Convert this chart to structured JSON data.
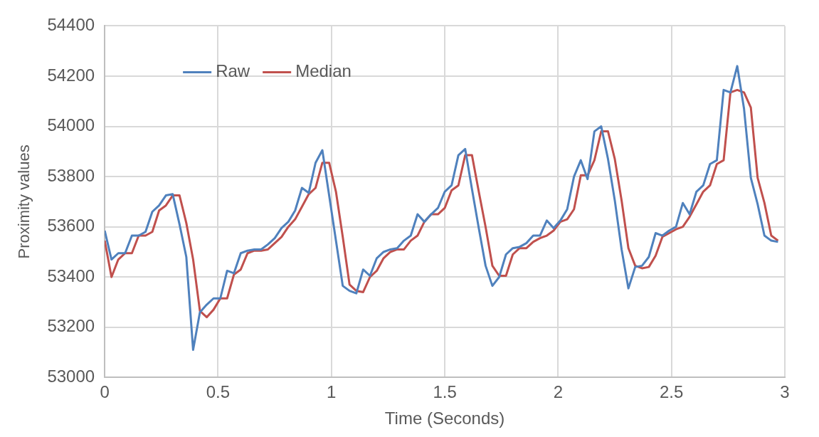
{
  "chart_data": {
    "type": "line",
    "xlabel": "Time (Seconds)",
    "ylabel": "Proximity values",
    "x": [
      0,
      0.03,
      0.06,
      0.09,
      0.12,
      0.15,
      0.18,
      0.21,
      0.24,
      0.27,
      0.3,
      0.33,
      0.36,
      0.39,
      0.42,
      0.45,
      0.48,
      0.51,
      0.54,
      0.57,
      0.6,
      0.63,
      0.66,
      0.69,
      0.72,
      0.75,
      0.78,
      0.81,
      0.84,
      0.87,
      0.9,
      0.93,
      0.96,
      0.99,
      1.02,
      1.05,
      1.08,
      1.11,
      1.14,
      1.17,
      1.2,
      1.23,
      1.26,
      1.29,
      1.32,
      1.35,
      1.38,
      1.41,
      1.44,
      1.47,
      1.5,
      1.53,
      1.56,
      1.59,
      1.62,
      1.65,
      1.68,
      1.71,
      1.74,
      1.77,
      1.8,
      1.83,
      1.86,
      1.89,
      1.92,
      1.95,
      1.98,
      2.01,
      2.04,
      2.07,
      2.1,
      2.13,
      2.16,
      2.19,
      2.22,
      2.25,
      2.28,
      2.31,
      2.34,
      2.37,
      2.4,
      2.43,
      2.46,
      2.49,
      2.52,
      2.55,
      2.58,
      2.61,
      2.64,
      2.67,
      2.7,
      2.73,
      2.76,
      2.79,
      2.82,
      2.85,
      2.88,
      2.91,
      2.94,
      2.97
    ],
    "series": [
      {
        "name": "Raw",
        "color": "#4f81bd",
        "values": [
          53585,
          53470,
          53495,
          53495,
          53565,
          53565,
          53580,
          53660,
          53685,
          53725,
          53730,
          53610,
          53480,
          53110,
          53260,
          53290,
          53315,
          53315,
          53425,
          53415,
          53495,
          53505,
          53510,
          53510,
          53530,
          53555,
          53595,
          53620,
          53665,
          53755,
          53735,
          53855,
          53905,
          53725,
          53545,
          53365,
          53345,
          53335,
          53430,
          53405,
          53475,
          53500,
          53510,
          53515,
          53545,
          53565,
          53650,
          53620,
          53650,
          53675,
          53740,
          53765,
          53885,
          53910,
          53750,
          53595,
          53445,
          53365,
          53400,
          53490,
          53515,
          53520,
          53535,
          53565,
          53565,
          53625,
          53595,
          53625,
          53670,
          53800,
          53865,
          53790,
          53980,
          54000,
          53870,
          53705,
          53510,
          53355,
          53440,
          53445,
          53480,
          53575,
          53565,
          53585,
          53600,
          53695,
          53650,
          53740,
          53765,
          53850,
          53865,
          54145,
          54135,
          54240,
          54070,
          53795,
          53690,
          53565,
          53545,
          53540
        ]
      },
      {
        "name": "Median",
        "color": "#c0504d",
        "values": [
          53545,
          53400,
          53470,
          53495,
          53495,
          53565,
          53565,
          53580,
          53665,
          53685,
          53725,
          53725,
          53615,
          53470,
          53265,
          53240,
          53270,
          53315,
          53315,
          53410,
          53430,
          53495,
          53505,
          53505,
          53510,
          53535,
          53560,
          53600,
          53630,
          53680,
          53730,
          53755,
          53855,
          53855,
          53740,
          53560,
          53370,
          53345,
          53340,
          53400,
          53425,
          53475,
          53500,
          53510,
          53510,
          53545,
          53565,
          53620,
          53650,
          53650,
          53675,
          53745,
          53765,
          53885,
          53885,
          53740,
          53600,
          53445,
          53405,
          53405,
          53490,
          53515,
          53515,
          53540,
          53555,
          53565,
          53585,
          53620,
          53630,
          53670,
          53805,
          53805,
          53865,
          53980,
          53980,
          53870,
          53705,
          53515,
          53445,
          53435,
          53440,
          53485,
          53560,
          53575,
          53590,
          53600,
          53640,
          53690,
          53740,
          53765,
          53850,
          53865,
          54135,
          54145,
          54135,
          54075,
          53795,
          53695,
          53565,
          53545
        ]
      }
    ],
    "xlim": [
      0,
      3
    ],
    "xticks": [
      0,
      0.5,
      1,
      1.5,
      2,
      2.5,
      3
    ],
    "ylim": [
      53000,
      54400
    ],
    "yticks": [
      53000,
      53200,
      53400,
      53600,
      53800,
      54000,
      54200,
      54400
    ],
    "grid": true,
    "legend": "top left"
  }
}
